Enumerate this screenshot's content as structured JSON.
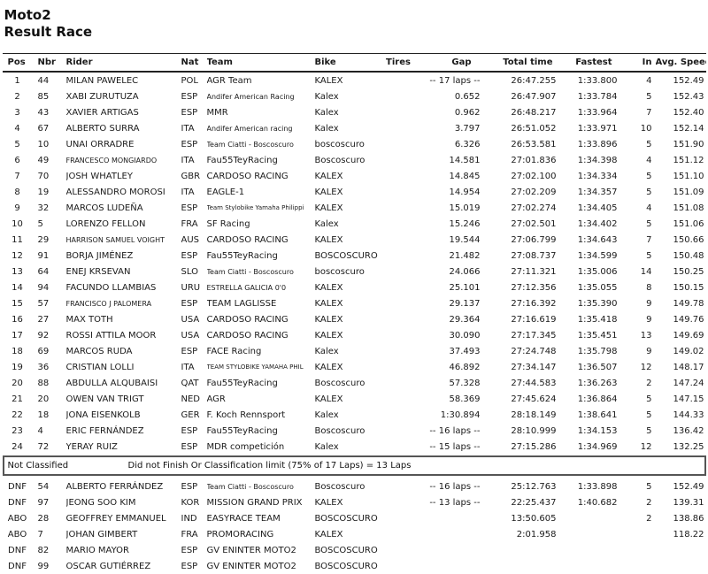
{
  "header": {
    "title": "Moto2",
    "subtitle": "Result Race"
  },
  "table": {
    "columns": [
      {
        "key": "pos",
        "label": "Pos"
      },
      {
        "key": "nbr",
        "label": "Nbr"
      },
      {
        "key": "rider",
        "label": "Rider"
      },
      {
        "key": "nat",
        "label": "Nat"
      },
      {
        "key": "team",
        "label": "Team"
      },
      {
        "key": "bike",
        "label": "Bike"
      },
      {
        "key": "tires",
        "label": "Tires"
      },
      {
        "key": "gap",
        "label": "Gap"
      },
      {
        "key": "total",
        "label": "Total time"
      },
      {
        "key": "fastest",
        "label": "Fastest"
      },
      {
        "key": "in",
        "label": "In"
      },
      {
        "key": "avg",
        "label": "Avg. Speed"
      }
    ],
    "classified_rows": [
      {
        "pos": "1",
        "nbr": "44",
        "rider": "MILAN PAWELEC",
        "nat": "POL",
        "team": "AGR Team",
        "bike": "KALEX",
        "tires": "",
        "gap": "-- 17 laps --",
        "total": "26:47.255",
        "fastest": "1:33.800",
        "in": "4",
        "avg": "152.49"
      },
      {
        "pos": "2",
        "nbr": "85",
        "rider": "XABI ZURUTUZA",
        "nat": "ESP",
        "team": "Andifer American Racing",
        "bike": "Kalex",
        "tires": "",
        "gap": "0.652",
        "total": "26:47.907",
        "fastest": "1:33.784",
        "in": "5",
        "avg": "152.43"
      },
      {
        "pos": "3",
        "nbr": "43",
        "rider": "XAVIER ARTIGAS",
        "nat": "ESP",
        "team": "MMR",
        "bike": "Kalex",
        "tires": "",
        "gap": "0.962",
        "total": "26:48.217",
        "fastest": "1:33.964",
        "in": "7",
        "avg": "152.40"
      },
      {
        "pos": "4",
        "nbr": "67",
        "rider": "ALBERTO SURRA",
        "nat": "ITA",
        "team": "Andifer American racing",
        "bike": "Kalex",
        "tires": "",
        "gap": "3.797",
        "total": "26:51.052",
        "fastest": "1:33.971",
        "in": "10",
        "avg": "152.14"
      },
      {
        "pos": "5",
        "nbr": "10",
        "rider": "UNAI ORRADRE",
        "nat": "ESP",
        "team": "Team Ciatti - Boscoscuro",
        "bike": "boscoscuro",
        "tires": "",
        "gap": "6.326",
        "total": "26:53.581",
        "fastest": "1:33.896",
        "in": "5",
        "avg": "151.90"
      },
      {
        "pos": "6",
        "nbr": "49",
        "rider": "FRANCESCO MONGIARDO",
        "nat": "ITA",
        "team": "Fau55TeyRacing",
        "bike": "Boscoscuro",
        "tires": "",
        "gap": "14.581",
        "total": "27:01.836",
        "fastest": "1:34.398",
        "in": "4",
        "avg": "151.12"
      },
      {
        "pos": "7",
        "nbr": "70",
        "rider": "JOSH WHATLEY",
        "nat": "GBR",
        "team": "CARDOSO RACING",
        "bike": "KALEX",
        "tires": "",
        "gap": "14.845",
        "total": "27:02.100",
        "fastest": "1:34.334",
        "in": "5",
        "avg": "151.10"
      },
      {
        "pos": "8",
        "nbr": "19",
        "rider": "ALESSANDRO MOROSI",
        "nat": "ITA",
        "team": "EAGLE-1",
        "bike": "KALEX",
        "tires": "",
        "gap": "14.954",
        "total": "27:02.209",
        "fastest": "1:34.357",
        "in": "5",
        "avg": "151.09"
      },
      {
        "pos": "9",
        "nbr": "32",
        "rider": "MARCOS LUDEÑA",
        "nat": "ESP",
        "team": "Team Stylobike Yamaha Philippi",
        "bike": "KALEX",
        "tires": "",
        "gap": "15.019",
        "total": "27:02.274",
        "fastest": "1:34.405",
        "in": "4",
        "avg": "151.08"
      },
      {
        "pos": "10",
        "nbr": "5",
        "rider": "LORENZO FELLON",
        "nat": "FRA",
        "team": "SF Racing",
        "bike": "Kalex",
        "tires": "",
        "gap": "15.246",
        "total": "27:02.501",
        "fastest": "1:34.402",
        "in": "5",
        "avg": "151.06"
      },
      {
        "pos": "11",
        "nbr": "29",
        "rider": "HARRISON SAMUEL VOIGHT",
        "nat": "AUS",
        "team": "CARDOSO RACING",
        "bike": "KALEX",
        "tires": "",
        "gap": "19.544",
        "total": "27:06.799",
        "fastest": "1:34.643",
        "in": "7",
        "avg": "150.66"
      },
      {
        "pos": "12",
        "nbr": "91",
        "rider": "BORJA JIMÉNEZ",
        "nat": "ESP",
        "team": "Fau55TeyRacing",
        "bike": "BOSCOSCURO",
        "tires": "",
        "gap": "21.482",
        "total": "27:08.737",
        "fastest": "1:34.599",
        "in": "5",
        "avg": "150.48"
      },
      {
        "pos": "13",
        "nbr": "64",
        "rider": "ENEJ KRSEVAN",
        "nat": "SLO",
        "team": "Team Ciatti - Boscoscuro",
        "bike": "boscoscuro",
        "tires": "",
        "gap": "24.066",
        "total": "27:11.321",
        "fastest": "1:35.006",
        "in": "14",
        "avg": "150.25"
      },
      {
        "pos": "14",
        "nbr": "94",
        "rider": "FACUNDO LLAMBIAS",
        "nat": "URU",
        "team": "ESTRELLA GALICIA 0'0",
        "bike": "KALEX",
        "tires": "",
        "gap": "25.101",
        "total": "27:12.356",
        "fastest": "1:35.055",
        "in": "8",
        "avg": "150.15"
      },
      {
        "pos": "15",
        "nbr": "57",
        "rider": "FRANCISCO J PALOMERA",
        "nat": "ESP",
        "team": "TEAM LAGLISSE",
        "bike": "KALEX",
        "tires": "",
        "gap": "29.137",
        "total": "27:16.392",
        "fastest": "1:35.390",
        "in": "9",
        "avg": "149.78"
      },
      {
        "pos": "16",
        "nbr": "27",
        "rider": "MAX TOTH",
        "nat": "USA",
        "team": "CARDOSO RACING",
        "bike": "KALEX",
        "tires": "",
        "gap": "29.364",
        "total": "27:16.619",
        "fastest": "1:35.418",
        "in": "9",
        "avg": "149.76"
      },
      {
        "pos": "17",
        "nbr": "92",
        "rider": "ROSSI ATTILA MOOR",
        "nat": "USA",
        "team": "CARDOSO RACING",
        "bike": "KALEX",
        "tires": "",
        "gap": "30.090",
        "total": "27:17.345",
        "fastest": "1:35.451",
        "in": "13",
        "avg": "149.69"
      },
      {
        "pos": "18",
        "nbr": "69",
        "rider": "MARCOS RUDA",
        "nat": "ESP",
        "team": "FACE Racing",
        "bike": "Kalex",
        "tires": "",
        "gap": "37.493",
        "total": "27:24.748",
        "fastest": "1:35.798",
        "in": "9",
        "avg": "149.02"
      },
      {
        "pos": "19",
        "nbr": "36",
        "rider": "CRISTIAN LOLLI",
        "nat": "ITA",
        "team": "TEAM STYLOBIKE YAMAHA PHIL",
        "bike": "KALEX",
        "tires": "",
        "gap": "46.892",
        "total": "27:34.147",
        "fastest": "1:36.507",
        "in": "12",
        "avg": "148.17"
      },
      {
        "pos": "20",
        "nbr": "88",
        "rider": "ABDULLA ALQUBAISI",
        "nat": "QAT",
        "team": "Fau55TeyRacing",
        "bike": "Boscoscuro",
        "tires": "",
        "gap": "57.328",
        "total": "27:44.583",
        "fastest": "1:36.263",
        "in": "2",
        "avg": "147.24"
      },
      {
        "pos": "21",
        "nbr": "20",
        "rider": "OWEN VAN TRIGT",
        "nat": "NED",
        "team": "AGR",
        "bike": "KALEX",
        "tires": "",
        "gap": "58.369",
        "total": "27:45.624",
        "fastest": "1:36.864",
        "in": "5",
        "avg": "147.15"
      },
      {
        "pos": "22",
        "nbr": "18",
        "rider": "JONA EISENKOLB",
        "nat": "GER",
        "team": "F. Koch Rennsport",
        "bike": "Kalex",
        "tires": "",
        "gap": "1:30.894",
        "total": "28:18.149",
        "fastest": "1:38.641",
        "in": "5",
        "avg": "144.33"
      },
      {
        "pos": "23",
        "nbr": "4",
        "rider": "ERIC FERNÁNDEZ",
        "nat": "ESP",
        "team": "Fau55TeyRacing",
        "bike": "Boscoscuro",
        "tires": "",
        "gap": "-- 16 laps --",
        "total": "28:10.999",
        "fastest": "1:34.153",
        "in": "5",
        "avg": "136.42"
      },
      {
        "pos": "24",
        "nbr": "72",
        "rider": "YERAY RUIZ",
        "nat": "ESP",
        "team": "MDR competición",
        "bike": "Kalex",
        "tires": "",
        "gap": "-- 15 laps --",
        "total": "27:15.286",
        "fastest": "1:34.969",
        "in": "12",
        "avg": "132.25"
      }
    ],
    "not_classified": {
      "label": "Not Classified",
      "note": "Did not Finish Or Classification limit (75% of 17 Laps) = 13 Laps"
    },
    "unclassified_rows": [
      {
        "pos": "DNF",
        "nbr": "54",
        "rider": "ALBERTO FERRÁNDEZ",
        "nat": "ESP",
        "team": "Team Ciatti - Boscoscuro",
        "bike": "Boscoscuro",
        "tires": "",
        "gap": "-- 16 laps --",
        "total": "25:12.763",
        "fastest": "1:33.898",
        "in": "5",
        "avg": "152.49"
      },
      {
        "pos": "DNF",
        "nbr": "97",
        "rider": "JEONG SOO KIM",
        "nat": "KOR",
        "team": "MISSION GRAND PRIX",
        "bike": "KALEX",
        "tires": "",
        "gap": "-- 13 laps --",
        "total": "22:25.437",
        "fastest": "1:40.682",
        "in": "2",
        "avg": "139.31"
      },
      {
        "pos": "ABO",
        "nbr": "28",
        "rider": "GEOFFREY EMMANUEL",
        "nat": "IND",
        "team": "EASYRACE TEAM",
        "bike": "BOSCOSCURO",
        "tires": "",
        "gap": "",
        "total": "13:50.605",
        "fastest": "",
        "in": "2",
        "avg": "138.86"
      },
      {
        "pos": "ABO",
        "nbr": "7",
        "rider": "JOHAN GIMBERT",
        "nat": "FRA",
        "team": "PROMORACING",
        "bike": "KALEX",
        "tires": "",
        "gap": "",
        "total": "2:01.958",
        "fastest": "",
        "in": "",
        "avg": "118.22"
      },
      {
        "pos": "DNF",
        "nbr": "82",
        "rider": "MARIO MAYOR",
        "nat": "ESP",
        "team": "GV ENINTER MOTO2",
        "bike": "BOSCOSCURO",
        "tires": "",
        "gap": "",
        "total": "",
        "fastest": "",
        "in": "",
        "avg": ""
      },
      {
        "pos": "DNF",
        "nbr": "99",
        "rider": "OSCAR GUTIÉRREZ",
        "nat": "ESP",
        "team": "GV ENINTER MOTO2",
        "bike": "BOSCOSCURO",
        "tires": "",
        "gap": "",
        "total": "",
        "fastest": "",
        "in": "",
        "avg": ""
      }
    ]
  }
}
